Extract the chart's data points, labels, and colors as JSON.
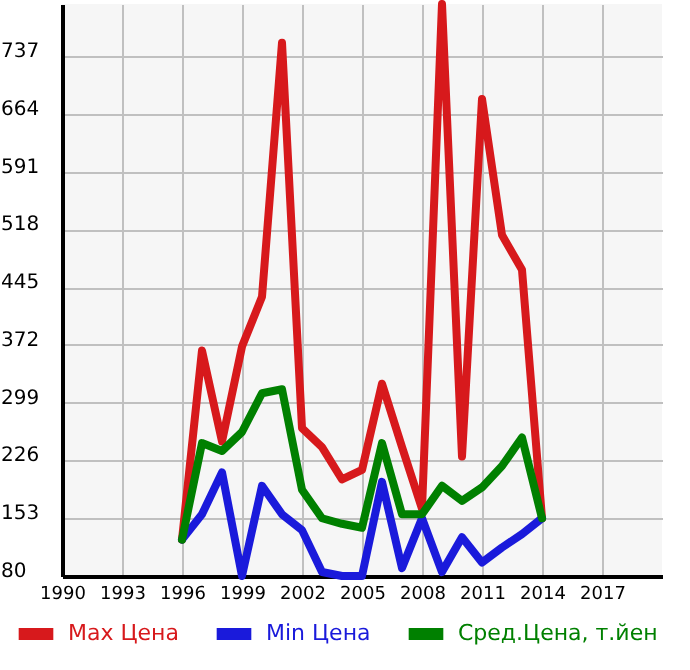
{
  "chart_data": {
    "type": "line",
    "x": [
      1996,
      1997,
      1998,
      1999,
      2000,
      2001,
      2002,
      2003,
      2004,
      2005,
      2006,
      2007,
      2008,
      2009,
      2010,
      2011,
      2012,
      2013,
      2014
    ],
    "series": [
      {
        "name": "Max Цена",
        "color": "#d7191c",
        "values": [
          126,
          365,
          250,
          370,
          433,
          754,
          267,
          243,
          202,
          214,
          323,
          243,
          165,
          803,
          231,
          683,
          511,
          467,
          153
        ]
      },
      {
        "name": "Min Цена",
        "color": "#1a1adb",
        "values": [
          126,
          158,
          211,
          80,
          194,
          158,
          138,
          85,
          80,
          80,
          199,
          90,
          153,
          85,
          129,
          97,
          116,
          133,
          153
        ]
      },
      {
        "name": "Сред.Цена, т.йен",
        "color": "#008000",
        "values": [
          126,
          248,
          238,
          262,
          311,
          316,
          189,
          153,
          146,
          141,
          248,
          158,
          158,
          194,
          175,
          192,
          219,
          255,
          153
        ]
      }
    ],
    "xlim": [
      1990,
      2020
    ],
    "xticks": [
      1990,
      1993,
      1996,
      1999,
      2002,
      2005,
      2008,
      2011,
      2014,
      2017
    ],
    "ylim": [
      80,
      803
    ],
    "yticks": [
      80,
      153,
      226,
      299,
      372,
      445,
      518,
      591,
      664,
      737
    ],
    "grid": true,
    "legend": "bottom",
    "marker": "none",
    "line_style": "solid"
  }
}
